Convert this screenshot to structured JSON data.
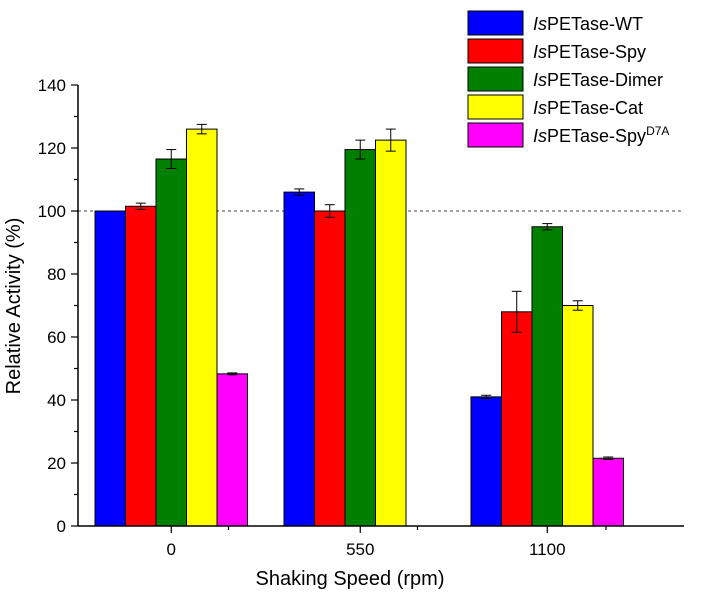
{
  "chart_data": {
    "type": "bar",
    "title": "",
    "xlabel": "Shaking Speed (rpm)",
    "ylabel": "Relative Activity (%)",
    "ylim": [
      0,
      140
    ],
    "yticks": [
      "0",
      "20",
      "40",
      "60",
      "80",
      "100",
      "120",
      "140"
    ],
    "categories": [
      "0",
      "550",
      "1100"
    ],
    "reference_line": 100,
    "series": [
      {
        "name_prefix": "Is",
        "name_suffix": "PETase-WT",
        "name_sup": "",
        "color": "#0000ff",
        "values": [
          100,
          106,
          41
        ],
        "errors": [
          0,
          1,
          0.5
        ]
      },
      {
        "name_prefix": "Is",
        "name_suffix": "PETase-Spy",
        "name_sup": "",
        "color": "#ff0000",
        "values": [
          101.5,
          100,
          68
        ],
        "errors": [
          1,
          2,
          6.5
        ]
      },
      {
        "name_prefix": "Is",
        "name_suffix": "PETase-Dimer",
        "name_sup": "",
        "color": "#007f00",
        "values": [
          116.5,
          119.5,
          95
        ],
        "errors": [
          3,
          3,
          1
        ]
      },
      {
        "name_prefix": "Is",
        "name_suffix": "PETase-Cat",
        "name_sup": "",
        "color": "#ffff00",
        "values": [
          126,
          122.5,
          70
        ],
        "errors": [
          1.5,
          3.5,
          1.5
        ]
      },
      {
        "name_prefix": "Is",
        "name_suffix": "PETase-Spy",
        "name_sup": "D7A",
        "color": "#ff00ff",
        "values": [
          48.3,
          null,
          21.5
        ],
        "errors": [
          0.3,
          null,
          0.4
        ]
      }
    ]
  }
}
